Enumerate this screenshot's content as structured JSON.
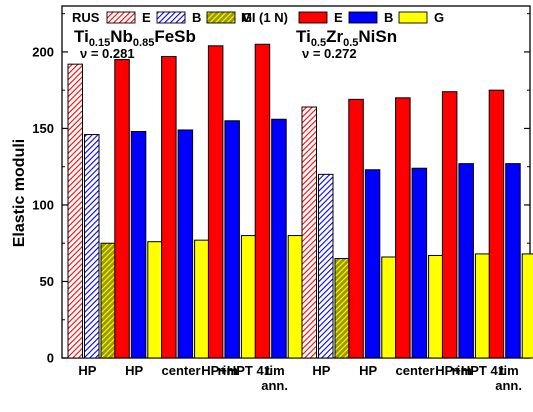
{
  "chart_data": {
    "type": "bar",
    "ylabel": "Elastic moduli",
    "ylim": [
      0,
      230
    ],
    "yticks": [
      0,
      50,
      100,
      150,
      200
    ],
    "grid": false,
    "legend": {
      "position": "top",
      "groups": [
        {
          "label": "RUS",
          "style": "hatched",
          "entries": [
            "E",
            "B",
            "G"
          ]
        },
        {
          "label": "MI (1 N)",
          "style": "solid",
          "entries": [
            "E",
            "B",
            "G"
          ]
        }
      ]
    },
    "series_colors": {
      "E": "#ff0000",
      "B": "#0000ff",
      "G": "#ffff00"
    },
    "annotations": [
      {
        "name": "compound-1",
        "formula": [
          [
            "Ti",
            false
          ],
          [
            "0.15",
            true
          ],
          [
            "Nb",
            false
          ],
          [
            "0.85",
            true
          ],
          [
            "FeSb",
            false
          ]
        ],
        "nu": "ν = 0.281"
      },
      {
        "name": "compound-2",
        "formula": [
          [
            "Ti",
            false
          ],
          [
            "0.5",
            true
          ],
          [
            "Zr",
            false
          ],
          [
            "0.5",
            true
          ],
          [
            "NiSn",
            false
          ]
        ],
        "nu": "ν = 0.272"
      }
    ],
    "groups": [
      {
        "label": [
          "HP"
        ],
        "method": "RUS",
        "E": 192,
        "B": 146,
        "G": 75
      },
      {
        "label": [
          "HP"
        ],
        "method": "MI",
        "E": 195,
        "B": 148,
        "G": 76
      },
      {
        "label": [
          "center"
        ],
        "method": "MI",
        "E": 197,
        "B": 149,
        "G": 77
      },
      {
        "label": [
          "rim"
        ],
        "method": "MI",
        "E": 204,
        "B": 155,
        "G": 80
      },
      {
        "label": [
          "rim",
          "ann."
        ],
        "method": "MI",
        "E": 205,
        "B": 156,
        "G": 80
      },
      {
        "label": [
          "HP"
        ],
        "method": "RUS",
        "E": 164,
        "B": 120,
        "G": 65
      },
      {
        "label": [
          "HP"
        ],
        "method": "MI",
        "E": 169,
        "B": 123,
        "G": 66
      },
      {
        "label": [
          "center"
        ],
        "method": "MI",
        "E": 170,
        "B": 124,
        "G": 67
      },
      {
        "label": [
          "rim"
        ],
        "method": "MI",
        "E": 174,
        "B": 127,
        "G": 68
      },
      {
        "label": [
          "rim",
          "ann."
        ],
        "method": "MI",
        "E": 175,
        "B": 127,
        "G": 68
      }
    ],
    "hpt_labels": [
      "HP+HPT 41",
      "HP+HPT 41"
    ]
  }
}
